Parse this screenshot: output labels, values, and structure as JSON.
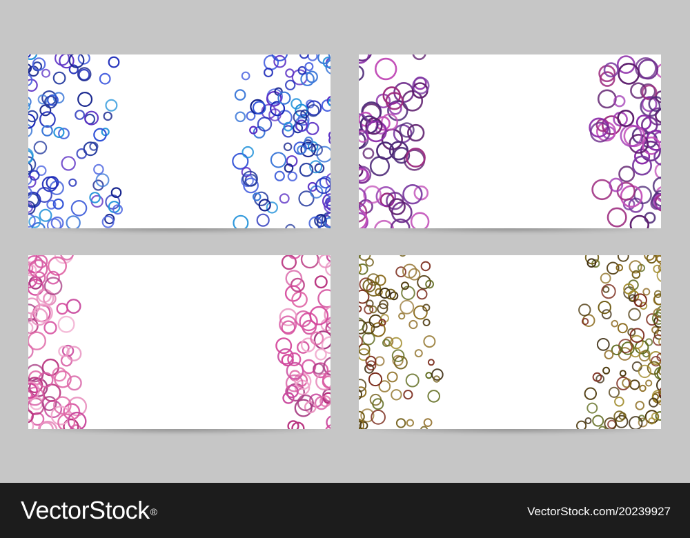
{
  "watermark": {
    "brand": "VectorStock",
    "brand_mark": "®",
    "image_ref": "VectorStock.com/20239927"
  },
  "cards": [
    {
      "name": "blue-ring-card",
      "palette": [
        "#1a28b8",
        "#2d4fd6",
        "#3b78d8",
        "#5a2ec4",
        "#1e90d9",
        "#243a9e",
        "#4a63e0",
        "#0f1e8a"
      ]
    },
    {
      "name": "purple-ring-card",
      "palette": [
        "#8a2aa8",
        "#6b2a8a",
        "#a23bb5",
        "#5e1f6e",
        "#c24fb8",
        "#7a3aa0",
        "#9c2a7e",
        "#4e2a78"
      ]
    },
    {
      "name": "pink-ring-card",
      "palette": [
        "#d4449a",
        "#e06aa8",
        "#b8327e",
        "#e892c0",
        "#c94a9e",
        "#a63a82",
        "#f0a6cc",
        "#d65aa2"
      ]
    },
    {
      "name": "olive-ring-card",
      "palette": [
        "#6e5a12",
        "#8a6a1c",
        "#4e3a0e",
        "#a08a2a",
        "#7a2a1a",
        "#5e6a1c",
        "#3a2a0e",
        "#9a7a3a"
      ]
    }
  ]
}
